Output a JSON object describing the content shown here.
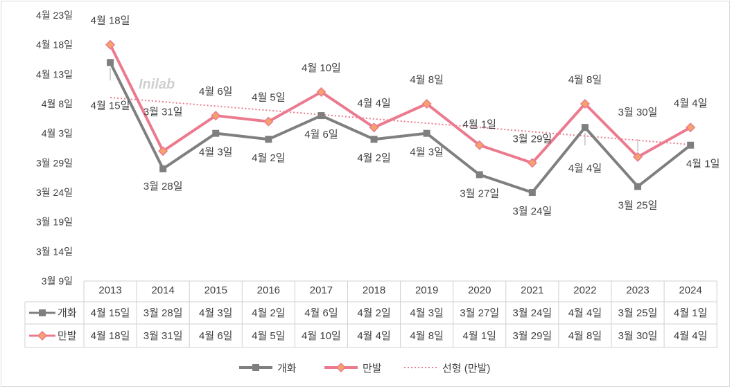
{
  "chart_data": {
    "type": "line",
    "title": "",
    "xlabel": "",
    "ylabel": "",
    "watermark": "Inilab",
    "categories": [
      "2013",
      "2014",
      "2015",
      "2016",
      "2017",
      "2018",
      "2019",
      "2020",
      "2021",
      "2022",
      "2023",
      "2024"
    ],
    "y_ticks": [
      "3월 9일",
      "3월 14일",
      "3월 19일",
      "3월 24일",
      "3월 29일",
      "4월 3일",
      "4월 8일",
      "4월 13일",
      "4월 18일",
      "4월 23일"
    ],
    "y_unit": "day of year",
    "ylim": [
      68,
      113
    ],
    "series": [
      {
        "name": "개화",
        "color": "#7f7f7f",
        "marker": "square",
        "values": [
          105,
          87,
          93,
          92,
          96,
          92,
          93,
          86,
          83,
          94,
          84,
          91
        ],
        "labels": [
          "4월 15일",
          "3월 28일",
          "4월 3일",
          "4월 2일",
          "4월 6일",
          "4월 2일",
          "4월 3일",
          "3월 27일",
          "3월 24일",
          "4월 4일",
          "3월 25일",
          "4월 1일"
        ]
      },
      {
        "name": "만발",
        "color": "#ec7a8e",
        "marker": "diamond",
        "values": [
          108,
          90,
          96,
          95,
          100,
          94,
          98,
          91,
          88,
          98,
          89,
          94
        ],
        "labels": [
          "4월 18일",
          "3월 31일",
          "4월 6일",
          "4월 5일",
          "4월 10일",
          "4월 4일",
          "4월 8일",
          "4월 1일",
          "3월 29일",
          "4월 8일",
          "3월 30일",
          "4월 4일"
        ]
      }
    ],
    "trendline": {
      "name": "선형 (만발)",
      "of_series": "만발",
      "style": "dotted",
      "color": "#ec7a8e"
    },
    "legend_position": "bottom",
    "data_table": true
  }
}
